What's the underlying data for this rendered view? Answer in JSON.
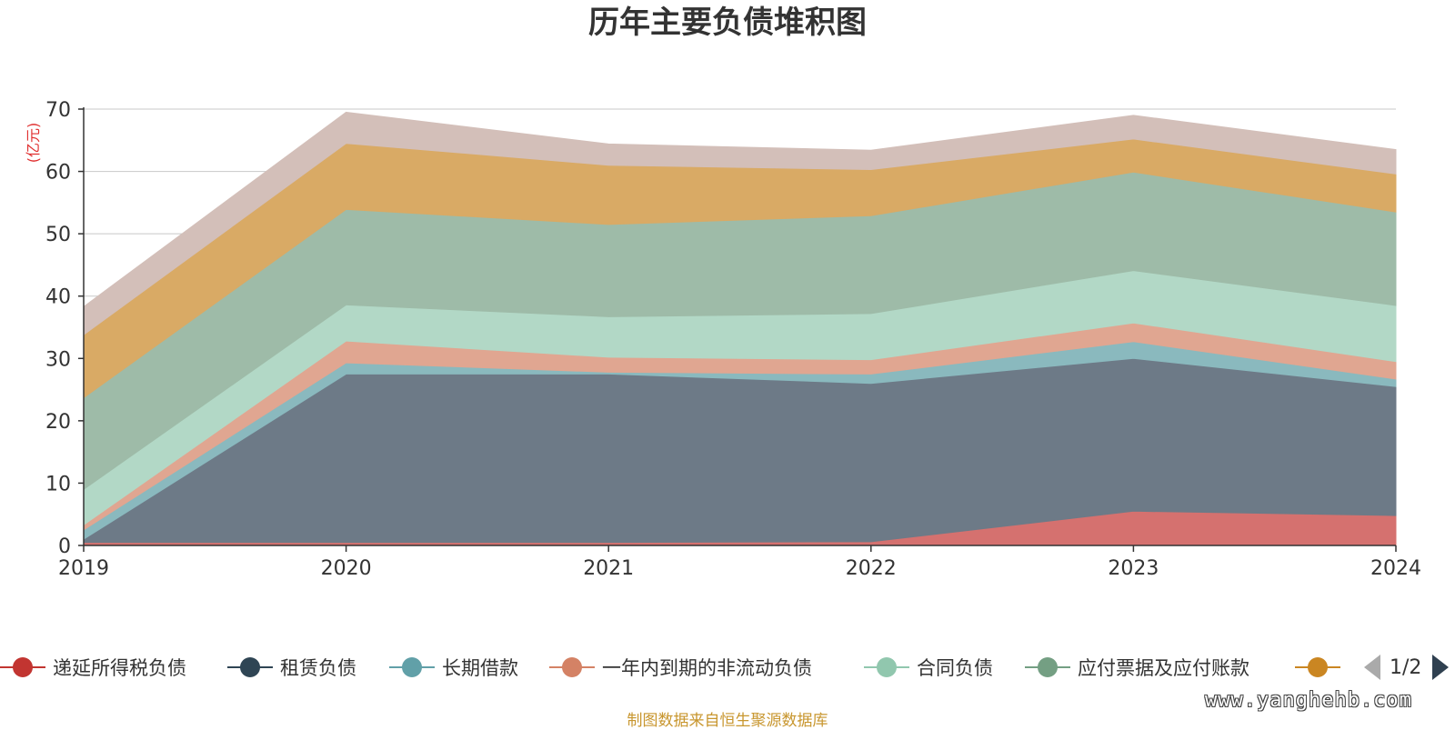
{
  "chart_data": {
    "type": "area",
    "stacked": true,
    "title": "历年主要负债堆积图",
    "ylabel": "(亿元)",
    "xlabel": "",
    "ylim": [
      0,
      70
    ],
    "yticks": [
      0,
      10,
      20,
      30,
      40,
      50,
      60,
      70
    ],
    "categories": [
      "2019",
      "2020",
      "2021",
      "2022",
      "2023",
      "2024"
    ],
    "grid": true,
    "legend_position": "bottom",
    "series": [
      {
        "name": "递延所得税负债",
        "color": "#c23531",
        "fill": "#d5716f",
        "values": [
          0.5,
          0.5,
          0.5,
          0.6,
          5.5,
          4.8
        ]
      },
      {
        "name": "租赁负债",
        "color": "#2f4554",
        "fill": "#6d7a87",
        "values": [
          0.5,
          27.0,
          27.0,
          25.4,
          24.5,
          20.7
        ]
      },
      {
        "name": "长期借款",
        "color": "#61a0a8",
        "fill": "#8ab9be",
        "values": [
          1.5,
          1.8,
          0.3,
          1.5,
          2.7,
          1.2
        ]
      },
      {
        "name": "一年内到期的非流动负债",
        "color": "#d48265",
        "fill": "#e0a691",
        "values": [
          0.8,
          3.5,
          2.4,
          2.3,
          3.0,
          2.8
        ]
      },
      {
        "name": "合同负债",
        "color": "#91c7ae",
        "fill": "#b2d8c6",
        "values": [
          5.7,
          5.8,
          6.5,
          7.4,
          8.4,
          9.0
        ]
      },
      {
        "name": "应付票据及应付账款",
        "color": "#749f83",
        "fill": "#9ebba8",
        "values": [
          14.7,
          15.3,
          14.8,
          15.7,
          15.8,
          15.0
        ]
      },
      {
        "name": "",
        "color": "#ca8622",
        "fill": "#d9aa65",
        "values": [
          10.1,
          10.6,
          9.5,
          7.4,
          5.3,
          6.1
        ]
      },
      {
        "name": "",
        "color": "#bda29a",
        "fill": "#d3bfb9",
        "values": [
          4.5,
          5.0,
          3.4,
          3.1,
          3.8,
          3.9
        ]
      }
    ]
  },
  "legend": {
    "visible_count": 7,
    "page_label": "1/2"
  },
  "footer": {
    "source": "制图数据来自恒生聚源数据库",
    "watermark": "www.yanghehb.com"
  }
}
